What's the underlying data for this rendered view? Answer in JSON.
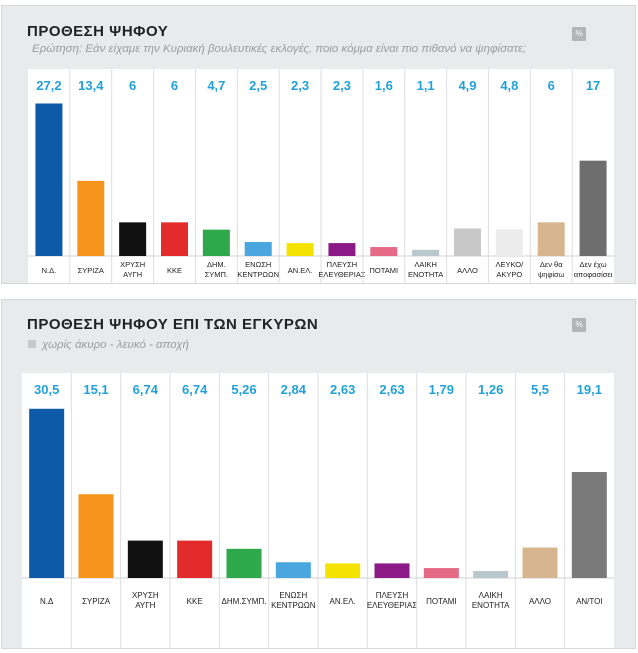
{
  "chart_data": [
    {
      "type": "bar",
      "title": "ΠΡΟΘΕΣΗ ΨΗΦΟΥ",
      "subtitle": "Ερώτηση: Εάν είχαμε την Κυριακή βουλευτικές εκλογές, ποιο κόμμα είναι πιο πιθανό να ψηφίσατε;",
      "unit_badge": "%",
      "categories": [
        [
          "Ν.Δ."
        ],
        [
          "ΣΥΡΙΖΑ"
        ],
        [
          "ΧΡΥΣΗ",
          "ΑΥΓΗ"
        ],
        [
          "ΚΚΕ"
        ],
        [
          "ΔΗΜ.",
          "ΣΥΜΠ."
        ],
        [
          "ΕΝΩΣΗ",
          "ΚΕΝΤΡΩΩΝ"
        ],
        [
          "ΑΝ.ΕΛ."
        ],
        [
          "ΠΛΕΥΣΗ",
          "ΕΛΕΥΘΕΡΙΑΣ"
        ],
        [
          "ΠΟΤΑΜΙ"
        ],
        [
          "ΛΑΙΚΗ",
          "ΕΝΟΤΗΤΑ"
        ],
        [
          "ΑΛΛΟ"
        ],
        [
          "ΛΕΥΚΟ/",
          "ΑΚΥΡΟ"
        ],
        [
          "Δεν θα",
          "ψηφίσω"
        ],
        [
          "Δεν έχω",
          "αποφασίσει"
        ]
      ],
      "values": [
        27.2,
        13.4,
        6,
        6,
        4.7,
        2.5,
        2.3,
        2.3,
        1.6,
        1.1,
        4.9,
        4.8,
        6,
        17
      ],
      "value_labels": [
        "27,2",
        "13,4",
        "6",
        "6",
        "4,7",
        "2,5",
        "2,3",
        "2,3",
        "1,6",
        "1,1",
        "4,9",
        "4,8",
        "6",
        "17"
      ],
      "colors": [
        "#0c5aa8",
        "#f7941d",
        "#111111",
        "#e32b2b",
        "#2ea84a",
        "#49a6de",
        "#f4e300",
        "#8b1a87",
        "#e56a86",
        "#b9c8cc",
        "#c8c8c8",
        "#ececec",
        "#d6b58f",
        "#6e6e6e"
      ],
      "ylim": [
        0,
        28
      ]
    },
    {
      "type": "bar",
      "title": "ΠΡΟΘΕΣΗ ΨΗΦΟΥ ΕΠΙ ΤΩΝ ΕΓΚΥΡΩΝ",
      "subtitle": "χωρίς άκυρο - λευκό - αποχή",
      "unit_badge": "%",
      "categories": [
        [
          "Ν.Δ"
        ],
        [
          "ΣΥΡΙΖΑ"
        ],
        [
          "ΧΡΥΣΗ",
          "ΑΥΓΗ"
        ],
        [
          "ΚΚΕ"
        ],
        [
          "ΔΗΜ.ΣΥΜΠ."
        ],
        [
          "ΕΝΩΣΗ",
          "ΚΕΝΤΡΩΩΝ"
        ],
        [
          "ΑΝ.ΕΛ."
        ],
        [
          "ΠΛΕΥΣΗ",
          "ΕΛΕΥΘΕΡΙΑΣ"
        ],
        [
          "ΠΟΤΑΜΙ"
        ],
        [
          "ΛΑΙΚΗ",
          "ΕΝΟΤΗΤΑ"
        ],
        [
          "ΑΛΛΟ"
        ],
        [
          "ΑΝ/ΤΟΙ"
        ]
      ],
      "values": [
        30.5,
        15.1,
        6.74,
        6.74,
        5.26,
        2.84,
        2.63,
        2.63,
        1.79,
        1.26,
        5.5,
        19.1
      ],
      "value_labels": [
        "30,5",
        "15,1",
        "6,74",
        "6,74",
        "5,26",
        "2,84",
        "2,63",
        "2,63",
        "1,79",
        "1,26",
        "5,5",
        "19,1"
      ],
      "colors": [
        "#0c5aa8",
        "#f7941d",
        "#111111",
        "#e32b2b",
        "#2ea84a",
        "#49a6de",
        "#f4e300",
        "#8b1a87",
        "#e56a86",
        "#b9c8cc",
        "#d6b58f",
        "#7a7a7a"
      ],
      "ylim": [
        0,
        31
      ]
    }
  ]
}
